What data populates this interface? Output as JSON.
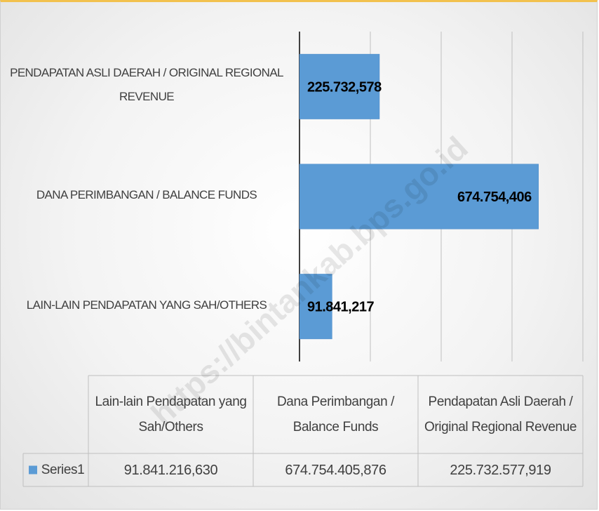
{
  "chart_data": {
    "type": "bar",
    "orientation": "horizontal",
    "categories": [
      "LAIN-LAIN PENDAPATAN YANG SAH/OTHERS",
      "DANA PERIMBANGAN / BALANCE FUNDS",
      "PENDAPATAN ASLI DAERAH / ORIGINAL REGIONAL REVENUE"
    ],
    "series": [
      {
        "name": "Series1",
        "color": "#5b9bd5",
        "values": [
          91841.217,
          674754.406,
          225732.578
        ],
        "value_labels": [
          "91.841,217",
          "674.754,406",
          "225.732,578"
        ]
      }
    ],
    "xlim": [
      0,
      800000
    ],
    "xticks": [
      0,
      200000,
      400000,
      600000,
      800000
    ],
    "grid": true,
    "data_table": {
      "columns": [
        "Lain-lain Pendapatan yang Sah/Others",
        "Dana Perimbangan / Balance Funds",
        "Pendapatan Asli Daerah / Original Regional Revenue"
      ],
      "rows": [
        [
          "91.841.216,630",
          "674.754.405,876",
          "225.732.577,919"
        ]
      ]
    }
  },
  "watermark": "https://bintankab.bps.go.id"
}
